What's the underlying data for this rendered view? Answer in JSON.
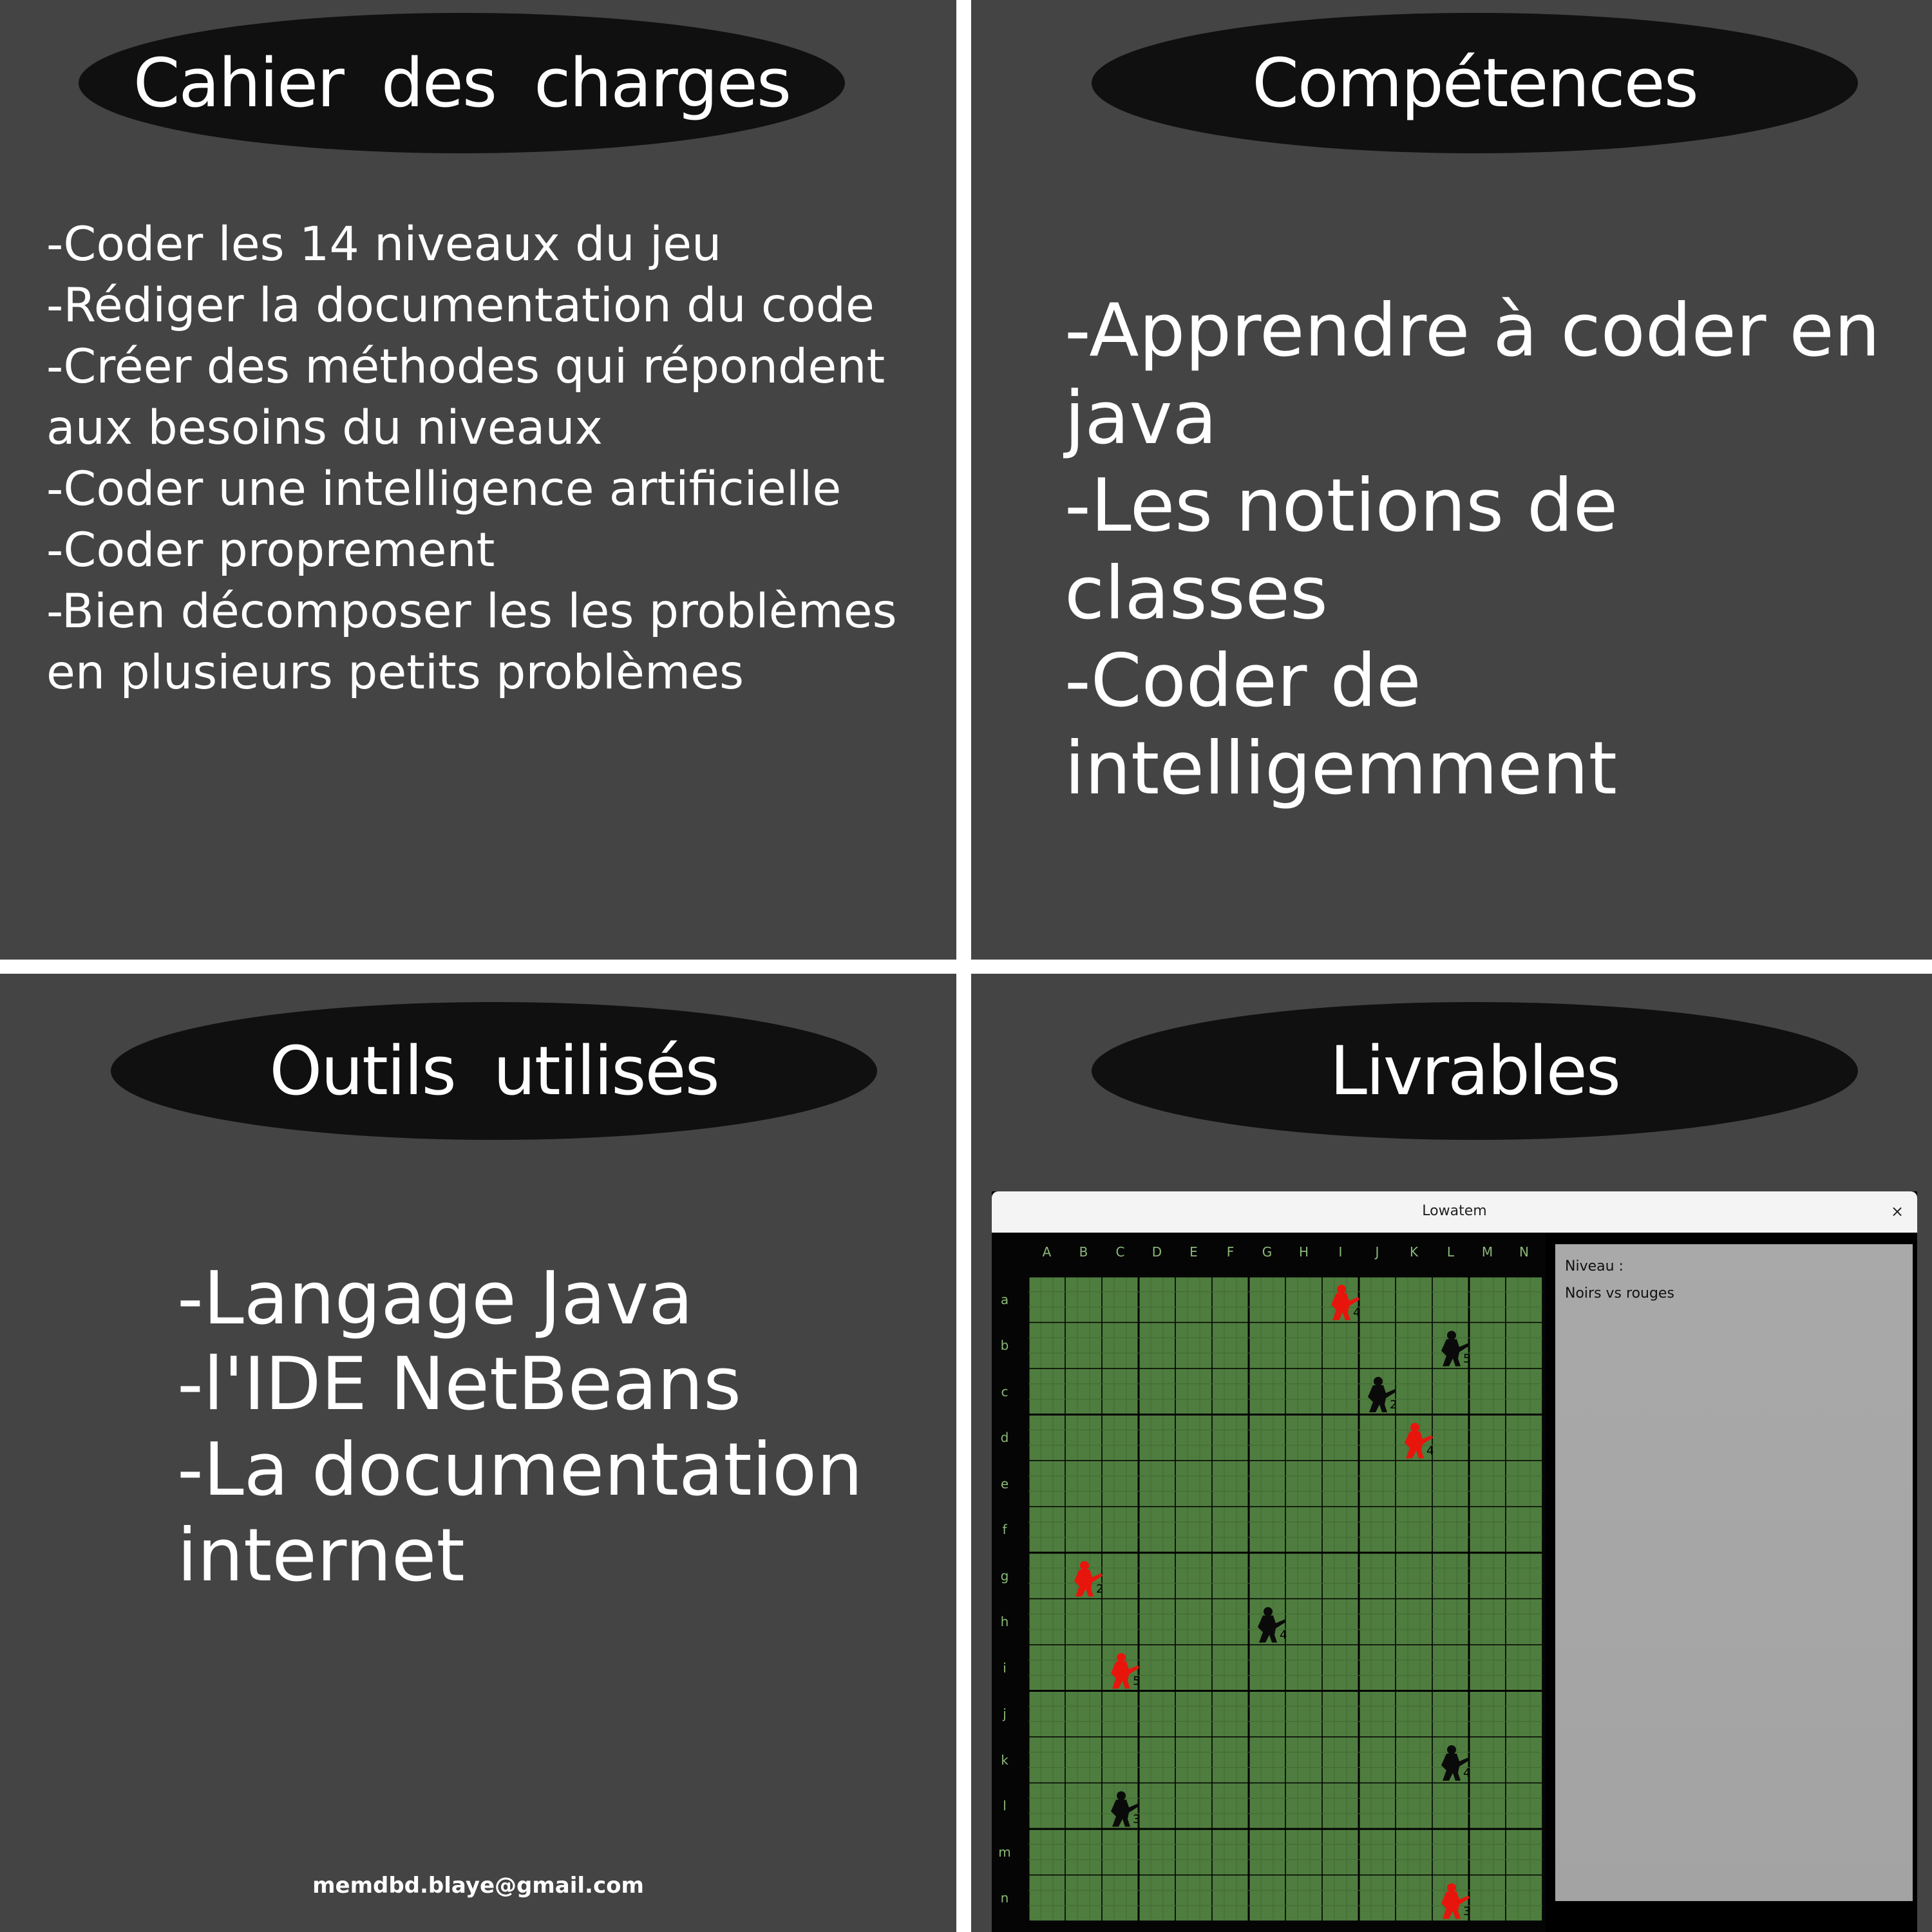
{
  "panels": {
    "top_left": {
      "title": "Cahier des charges",
      "items": [
        "-Coder les 14 niveaux du jeu",
        "-Rédiger la documentation du code",
        "-Créer des méthodes qui répondent aux besoins du niveaux",
        "-Coder une intelligence artificielle",
        "-Coder proprement",
        "-Bien décomposer les les problèmes en plusieurs petits problèmes"
      ]
    },
    "top_right": {
      "title": "Compétences",
      "items": [
        "-Apprendre à coder en java",
        "-Les notions de classes",
        "-Coder de intelligemment"
      ]
    },
    "bottom_left": {
      "title": "Outils utilisés",
      "items": [
        "-Langage Java",
        "-l'IDE NetBeans",
        "-La documentation internet"
      ],
      "email": "memdbd.blaye@gmail.com"
    },
    "bottom_right": {
      "title": "Livrables"
    }
  },
  "game_window": {
    "title": "Lowatem",
    "close_label": "×",
    "columns": [
      "A",
      "B",
      "C",
      "D",
      "E",
      "F",
      "G",
      "H",
      "I",
      "J",
      "K",
      "L",
      "M",
      "N"
    ],
    "rows": [
      "a",
      "b",
      "c",
      "d",
      "e",
      "f",
      "g",
      "h",
      "i",
      "j",
      "k",
      "l",
      "m",
      "n"
    ],
    "side_panel": {
      "level_label": "Niveau :",
      "level_value": "Noirs vs rouges"
    },
    "units": [
      {
        "row": 0,
        "col": 8,
        "color": "red",
        "value": "4"
      },
      {
        "row": 1,
        "col": 11,
        "color": "black",
        "value": "5"
      },
      {
        "row": 2,
        "col": 9,
        "color": "black",
        "value": "2"
      },
      {
        "row": 3,
        "col": 10,
        "color": "red",
        "value": "4"
      },
      {
        "row": 6,
        "col": 1,
        "color": "red",
        "value": "2"
      },
      {
        "row": 7,
        "col": 6,
        "color": "black",
        "value": "4"
      },
      {
        "row": 8,
        "col": 2,
        "color": "red",
        "value": "5"
      },
      {
        "row": 10,
        "col": 11,
        "color": "black",
        "value": "4"
      },
      {
        "row": 11,
        "col": 2,
        "color": "black",
        "value": "3"
      },
      {
        "row": 13,
        "col": 11,
        "color": "red",
        "value": "3"
      }
    ],
    "colors": {
      "board": "#4f7d3f",
      "fine_line": "#3f6a32",
      "thick_line": "#000000",
      "red_unit": "#e8150c",
      "black_unit": "#0a0a0a",
      "label": "#8ab878"
    }
  }
}
